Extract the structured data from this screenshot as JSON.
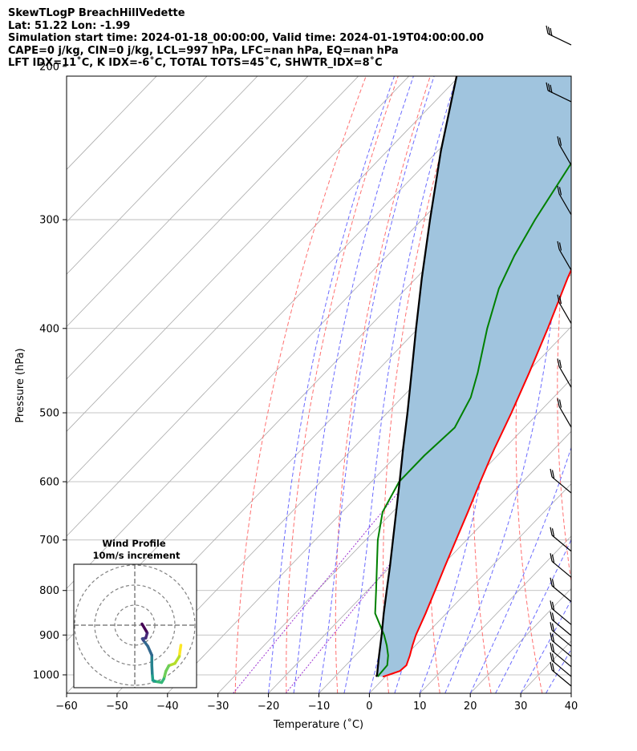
{
  "header": {
    "title": "SkewTLogP BreachHillVedette",
    "location": "Lat: 51.22   Lon: -1.99",
    "times": "Simulation start time: 2024-01-18_00:00:00, Valid time: 2024-01-19T04:00:00.00",
    "indices_1": "CAPE=0 j/kg, CIN=0 j/kg, LCL=997 hPa, LFC=nan hPa, EQ=nan hPa",
    "indices_2": "LFT IDX=11˚C, K IDX=-6˚C, TOTAL TOTS=45˚C, SHWTR_IDX=8˚C"
  },
  "chart_data": [
    {
      "type": "line",
      "subtype": "skew-t log-p",
      "xlabel": "Temperature (˚C)",
      "ylabel": "Pressure (hPa)",
      "xlim": [
        -60,
        40
      ],
      "ylim": [
        1050,
        100
      ],
      "y_scale": "log",
      "x_ticks": [
        -60,
        -50,
        -40,
        -30,
        -20,
        -10,
        0,
        10,
        20,
        30,
        40
      ],
      "x_tick_labels": [
        "−60",
        "−50",
        "−40",
        "−30",
        "−20",
        "−10",
        "0",
        "10",
        "20",
        "30",
        "40"
      ],
      "y_ticks": [
        1000,
        900,
        800,
        700,
        600,
        500,
        400,
        300,
        200,
        100
      ],
      "y_tick_labels": [
        "1000",
        "900",
        "800",
        "700",
        "600",
        "500",
        "400",
        "300",
        "200",
        "100"
      ],
      "grid": true,
      "colors": {
        "temperature": "#ff0000",
        "dewpoint": "#008000",
        "parcel": "#000000",
        "cape_fill": "#a0c4de",
        "dry_adiabat": "#ff7070",
        "moist_adiabat": "#6a6aff",
        "mixing_ratio": "#9b30d0",
        "isotherm": "#aaaaaa"
      },
      "series": [
        {
          "role": "temperature",
          "points": [
            {
              "p": 1005,
              "t": -0.5
            },
            {
              "p": 1000,
              "t": 0.3
            },
            {
              "p": 990,
              "t": 1.8
            },
            {
              "p": 975,
              "t": 2.0
            },
            {
              "p": 950,
              "t": 0.8
            },
            {
              "p": 925,
              "t": -0.6
            },
            {
              "p": 900,
              "t": -1.9
            },
            {
              "p": 850,
              "t": -4.1
            },
            {
              "p": 800,
              "t": -6.6
            },
            {
              "p": 750,
              "t": -9.3
            },
            {
              "p": 700,
              "t": -12.1
            },
            {
              "p": 650,
              "t": -15.1
            },
            {
              "p": 600,
              "t": -18.4
            },
            {
              "p": 550,
              "t": -21.9
            },
            {
              "p": 500,
              "t": -25.4
            },
            {
              "p": 450,
              "t": -29.5
            },
            {
              "p": 400,
              "t": -34.3
            },
            {
              "p": 350,
              "t": -40.0
            },
            {
              "p": 320,
              "t": -43.5
            },
            {
              "p": 300,
              "t": -45.4
            },
            {
              "p": 280,
              "t": -46.8
            },
            {
              "p": 250,
              "t": -48.7
            },
            {
              "p": 220,
              "t": -50.8
            },
            {
              "p": 200,
              "t": -52.3
            },
            {
              "p": 180,
              "t": -53.8
            },
            {
              "p": 160,
              "t": -55.0
            },
            {
              "p": 140,
              "t": -56.2
            },
            {
              "p": 120,
              "t": -57.8
            },
            {
              "p": 110,
              "t": -58.8
            },
            {
              "p": 100,
              "t": -59.8
            }
          ]
        },
        {
          "role": "dewpoint",
          "points": [
            {
              "p": 1005,
              "t": -1.5
            },
            {
              "p": 1000,
              "t": -1.6
            },
            {
              "p": 975,
              "t": -1.8
            },
            {
              "p": 950,
              "t": -3.5
            },
            {
              "p": 925,
              "t": -5.7
            },
            {
              "p": 900,
              "t": -8.2
            },
            {
              "p": 850,
              "t": -14.1
            },
            {
              "p": 800,
              "t": -18.3
            },
            {
              "p": 750,
              "t": -22.8
            },
            {
              "p": 700,
              "t": -27.6
            },
            {
              "p": 650,
              "t": -32.0
            },
            {
              "p": 600,
              "t": -34.5
            },
            {
              "p": 560,
              "t": -34.5
            },
            {
              "p": 520,
              "t": -33.8
            },
            {
              "p": 480,
              "t": -36.4
            },
            {
              "p": 450,
              "t": -39.7
            },
            {
              "p": 400,
              "t": -46.3
            },
            {
              "p": 360,
              "t": -51.6
            },
            {
              "p": 330,
              "t": -54.8
            },
            {
              "p": 300,
              "t": -57.6
            },
            {
              "p": 250,
              "t": -62.0
            },
            {
              "p": 200,
              "t": -66.2
            },
            {
              "p": 180,
              "t": -69.0
            },
            {
              "p": 170,
              "t": -71.4
            },
            {
              "p": 160,
              "t": -74.0
            },
            {
              "p": 150,
              "t": -75.2
            },
            {
              "p": 140,
              "t": -74.8
            },
            {
              "p": 120,
              "t": -75.0
            },
            {
              "p": 100,
              "t": -76.0
            }
          ]
        },
        {
          "role": "parcel",
          "points": [
            {
              "p": 1005,
              "t": -1.8
            },
            {
              "p": 1000,
              "t": -2.0
            },
            {
              "p": 950,
              "t": -5.3
            },
            {
              "p": 900,
              "t": -8.7
            },
            {
              "p": 850,
              "t": -12.4
            },
            {
              "p": 800,
              "t": -16.2
            },
            {
              "p": 750,
              "t": -20.2
            },
            {
              "p": 700,
              "t": -24.6
            },
            {
              "p": 650,
              "t": -29.3
            },
            {
              "p": 600,
              "t": -34.4
            },
            {
              "p": 550,
              "t": -40.0
            },
            {
              "p": 500,
              "t": -46.0
            },
            {
              "p": 450,
              "t": -52.8
            },
            {
              "p": 400,
              "t": -60.4
            },
            {
              "p": 350,
              "t": -68.9
            },
            {
              "p": 300,
              "t": -78.4
            },
            {
              "p": 250,
              "t": -89.4
            },
            {
              "p": 200,
              "t": -102.0
            },
            {
              "p": 150,
              "t": -117.0
            },
            {
              "p": 120,
              "t": -127.0
            },
            {
              "p": 100,
              "t": -136.0
            }
          ]
        }
      ],
      "wind_barbs": [
        {
          "p": 1000,
          "barbs": "low"
        },
        {
          "p": 975,
          "barbs": "low"
        },
        {
          "p": 950,
          "barbs": "low"
        },
        {
          "p": 925,
          "barbs": "low"
        },
        {
          "p": 900,
          "barbs": "low"
        },
        {
          "p": 875,
          "barbs": "low"
        },
        {
          "p": 850,
          "barbs": "low"
        },
        {
          "p": 800,
          "barbs": "low"
        },
        {
          "p": 750,
          "barbs": "low"
        },
        {
          "p": 700,
          "barbs": "low"
        },
        {
          "p": 600,
          "barbs": "low"
        },
        {
          "p": 500,
          "barbs": "mid"
        },
        {
          "p": 450,
          "barbs": "mid"
        },
        {
          "p": 380,
          "barbs": "mid"
        },
        {
          "p": 330,
          "barbs": "mid"
        },
        {
          "p": 285,
          "barbs": "mid"
        },
        {
          "p": 250,
          "barbs": "mid"
        },
        {
          "p": 215,
          "barbs": "high"
        },
        {
          "p": 185,
          "barbs": "high"
        },
        {
          "p": 160,
          "barbs": "high"
        },
        {
          "p": 140,
          "barbs": "high"
        },
        {
          "p": 120,
          "barbs": "high"
        },
        {
          "p": 107,
          "barbs": "high"
        }
      ]
    },
    {
      "type": "line",
      "subtype": "hodograph",
      "title": "Wind Profile",
      "subtitle": "10m/s increment",
      "rings_ms": [
        10,
        20,
        30
      ],
      "points": [
        {
          "u": 23.0,
          "v": -10.0
        },
        {
          "u": 22.6,
          "v": -12.5
        },
        {
          "u": 22.2,
          "v": -15.6
        },
        {
          "u": 20.0,
          "v": -19.1
        },
        {
          "u": 17.0,
          "v": -20.2
        },
        {
          "u": 15.5,
          "v": -23.0
        },
        {
          "u": 14.5,
          "v": -26.8
        },
        {
          "u": 13.4,
          "v": -28.6
        },
        {
          "u": 10.0,
          "v": -28.0
        },
        {
          "u": 9.0,
          "v": -27.5
        },
        {
          "u": 8.7,
          "v": -24.0
        },
        {
          "u": 8.5,
          "v": -20.0
        },
        {
          "u": 8.5,
          "v": -15.0
        },
        {
          "u": 6.5,
          "v": -10.5
        },
        {
          "u": 4.3,
          "v": -7.6
        },
        {
          "u": 3.8,
          "v": -6.8
        },
        {
          "u": 5.5,
          "v": -6.4
        },
        {
          "u": 6.2,
          "v": -3.9
        },
        {
          "u": 5.8,
          "v": -3.1
        },
        {
          "u": 3.6,
          "v": 0.6
        }
      ]
    }
  ]
}
